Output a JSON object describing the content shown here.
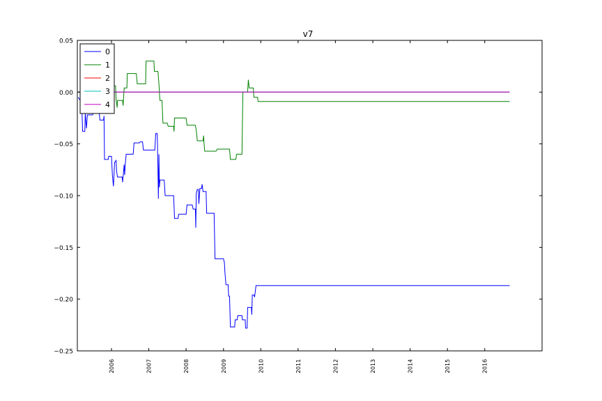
{
  "chart_data": {
    "type": "line",
    "title": "v7",
    "xlabel": "",
    "ylabel": "",
    "xlim": [
      "2005-02-01",
      "2017-07-15"
    ],
    "ylim": [
      -0.25,
      0.05
    ],
    "yticks": [
      0.05,
      0.0,
      -0.05,
      -0.1,
      -0.15,
      -0.2,
      -0.25
    ],
    "ytick_labels": [
      "0.05",
      "0.00",
      "−0.05",
      "−0.10",
      "−0.15",
      "−0.20",
      "−0.25"
    ],
    "xticks": [
      "2006-01-01",
      "2007-01-01",
      "2008-01-01",
      "2009-01-01",
      "2010-01-01",
      "2011-01-01",
      "2012-01-01",
      "2013-01-01",
      "2014-01-01",
      "2015-01-01",
      "2016-01-01"
    ],
    "xtick_labels": [
      "2006",
      "2007",
      "2008",
      "2009",
      "2010",
      "2011",
      "2012",
      "2013",
      "2014",
      "2015",
      "2016"
    ],
    "grid": false,
    "legend_position": "top-left",
    "series": [
      {
        "name": "0",
        "color": "#0000ff",
        "points": [
          [
            "2005-02-10",
            -0.005
          ],
          [
            "2005-03-15",
            -0.01
          ],
          [
            "2005-03-25",
            -0.038
          ],
          [
            "2005-04-15",
            -0.038
          ],
          [
            "2005-04-20",
            -0.02
          ],
          [
            "2005-05-01",
            -0.035
          ],
          [
            "2005-05-10",
            -0.022
          ],
          [
            "2005-07-01",
            -0.022
          ],
          [
            "2005-07-10",
            -0.018
          ],
          [
            "2005-09-01",
            -0.018
          ],
          [
            "2005-09-10",
            -0.027
          ],
          [
            "2005-10-15",
            -0.027
          ],
          [
            "2005-10-20",
            -0.023
          ],
          [
            "2005-10-25",
            -0.065
          ],
          [
            "2005-12-01",
            -0.065
          ],
          [
            "2005-12-05",
            -0.062
          ],
          [
            "2006-01-01",
            -0.062
          ],
          [
            "2006-01-10",
            -0.08
          ],
          [
            "2006-01-20",
            -0.091
          ],
          [
            "2006-02-01",
            -0.068
          ],
          [
            "2006-02-15",
            -0.066
          ],
          [
            "2006-02-20",
            -0.076
          ],
          [
            "2006-03-01",
            -0.082
          ],
          [
            "2006-04-15",
            -0.082
          ],
          [
            "2006-04-20",
            -0.087
          ],
          [
            "2006-05-05",
            -0.07
          ],
          [
            "2006-05-10",
            -0.08
          ],
          [
            "2006-05-15",
            -0.07
          ],
          [
            "2006-05-25",
            -0.06
          ],
          [
            "2006-08-01",
            -0.06
          ],
          [
            "2006-08-10",
            -0.049
          ],
          [
            "2006-10-01",
            -0.049
          ],
          [
            "2006-10-10",
            -0.048
          ],
          [
            "2006-11-01",
            -0.048
          ],
          [
            "2006-11-10",
            -0.056
          ],
          [
            "2007-03-01",
            -0.056
          ],
          [
            "2007-03-10",
            -0.04
          ],
          [
            "2007-03-25",
            -0.04
          ],
          [
            "2007-04-01",
            -0.075
          ],
          [
            "2007-04-05",
            -0.103
          ],
          [
            "2007-04-10",
            -0.06
          ],
          [
            "2007-04-15",
            -0.092
          ],
          [
            "2007-04-20",
            -0.085
          ],
          [
            "2007-06-01",
            -0.085
          ],
          [
            "2007-06-10",
            -0.1
          ],
          [
            "2007-09-01",
            -0.1
          ],
          [
            "2007-09-10",
            -0.122
          ],
          [
            "2007-10-15",
            -0.122
          ],
          [
            "2007-10-20",
            -0.118
          ],
          [
            "2008-01-01",
            -0.118
          ],
          [
            "2008-01-10",
            -0.109
          ],
          [
            "2008-03-01",
            -0.109
          ],
          [
            "2008-03-10",
            -0.113
          ],
          [
            "2008-04-01",
            -0.113
          ],
          [
            "2008-04-05",
            -0.131
          ],
          [
            "2008-04-10",
            -0.098
          ],
          [
            "2008-04-20",
            -0.094
          ],
          [
            "2008-05-01",
            -0.094
          ],
          [
            "2008-05-05",
            -0.108
          ],
          [
            "2008-05-15",
            -0.093
          ],
          [
            "2008-06-01",
            -0.093
          ],
          [
            "2008-06-05",
            -0.089
          ],
          [
            "2008-06-15",
            -0.096
          ],
          [
            "2008-07-15",
            -0.096
          ],
          [
            "2008-07-20",
            -0.117
          ],
          [
            "2008-10-01",
            -0.117
          ],
          [
            "2008-10-10",
            -0.161
          ],
          [
            "2009-01-01",
            -0.161
          ],
          [
            "2009-01-10",
            -0.165
          ],
          [
            "2009-01-15",
            -0.174
          ],
          [
            "2009-01-25",
            -0.186
          ],
          [
            "2009-02-15",
            -0.186
          ],
          [
            "2009-02-20",
            -0.197
          ],
          [
            "2009-03-01",
            -0.197
          ],
          [
            "2009-03-10",
            -0.227
          ],
          [
            "2009-04-20",
            -0.227
          ],
          [
            "2009-04-25",
            -0.22
          ],
          [
            "2009-05-15",
            -0.22
          ],
          [
            "2009-05-20",
            -0.216
          ],
          [
            "2009-07-01",
            -0.216
          ],
          [
            "2009-07-05",
            -0.22
          ],
          [
            "2009-08-01",
            -0.22
          ],
          [
            "2009-08-05",
            -0.228
          ],
          [
            "2009-08-20",
            -0.228
          ],
          [
            "2009-08-25",
            -0.208
          ],
          [
            "2009-10-01",
            -0.208
          ],
          [
            "2009-10-05",
            -0.215
          ],
          [
            "2009-10-10",
            -0.196
          ],
          [
            "2009-10-25",
            -0.196
          ],
          [
            "2009-11-01",
            -0.198
          ],
          [
            "2009-11-15",
            -0.187
          ],
          [
            "2016-09-01",
            -0.187
          ]
        ]
      },
      {
        "name": "1",
        "color": "#008000",
        "points": [
          [
            "2005-02-10",
            0.0
          ],
          [
            "2005-11-01",
            0.0
          ],
          [
            "2005-11-10",
            0.009
          ],
          [
            "2006-01-20",
            0.009
          ],
          [
            "2006-01-25",
            0.006
          ],
          [
            "2006-02-10",
            0.006
          ],
          [
            "2006-02-15",
            -0.007
          ],
          [
            "2006-02-25",
            -0.015
          ],
          [
            "2006-03-01",
            -0.008
          ],
          [
            "2006-04-20",
            -0.008
          ],
          [
            "2006-04-25",
            -0.013
          ],
          [
            "2006-05-05",
            0.004
          ],
          [
            "2006-06-01",
            0.004
          ],
          [
            "2006-06-05",
            0.018
          ],
          [
            "2006-09-01",
            0.018
          ],
          [
            "2006-09-10",
            0.008
          ],
          [
            "2006-12-01",
            0.008
          ],
          [
            "2006-12-05",
            0.03
          ],
          [
            "2007-02-20",
            0.03
          ],
          [
            "2007-02-25",
            0.02
          ],
          [
            "2007-04-01",
            0.02
          ],
          [
            "2007-04-10",
            0.008
          ],
          [
            "2007-04-20",
            -0.008
          ],
          [
            "2007-05-10",
            -0.008
          ],
          [
            "2007-05-20",
            -0.03
          ],
          [
            "2007-07-01",
            -0.03
          ],
          [
            "2007-07-10",
            -0.033
          ],
          [
            "2007-09-01",
            -0.033
          ],
          [
            "2007-09-05",
            -0.038
          ],
          [
            "2007-09-10",
            -0.025
          ],
          [
            "2008-01-01",
            -0.025
          ],
          [
            "2008-01-10",
            -0.032
          ],
          [
            "2008-04-01",
            -0.032
          ],
          [
            "2008-04-10",
            -0.037
          ],
          [
            "2008-04-20",
            -0.047
          ],
          [
            "2008-06-15",
            -0.047
          ],
          [
            "2008-06-20",
            -0.042
          ],
          [
            "2008-06-25",
            -0.05
          ],
          [
            "2008-07-01",
            -0.057
          ],
          [
            "2008-10-20",
            -0.057
          ],
          [
            "2008-11-01",
            -0.055
          ],
          [
            "2009-03-01",
            -0.055
          ],
          [
            "2009-03-10",
            -0.065
          ],
          [
            "2009-05-01",
            -0.065
          ],
          [
            "2009-05-10",
            -0.06
          ],
          [
            "2009-07-01",
            -0.06
          ],
          [
            "2009-07-10",
            0.0
          ],
          [
            "2009-08-25",
            0.0
          ],
          [
            "2009-09-01",
            0.012
          ],
          [
            "2009-09-10",
            0.004
          ],
          [
            "2009-10-20",
            0.004
          ],
          [
            "2009-10-25",
            -0.005
          ],
          [
            "2009-12-01",
            -0.005
          ],
          [
            "2009-12-05",
            -0.009
          ],
          [
            "2016-09-01",
            -0.009
          ]
        ]
      },
      {
        "name": "2",
        "color": "#ff0000",
        "points": [
          [
            "2005-02-10",
            0.0
          ],
          [
            "2016-09-01",
            0.0
          ]
        ]
      },
      {
        "name": "3",
        "color": "#00bfbf",
        "points": [
          [
            "2005-02-10",
            0.0
          ],
          [
            "2016-09-01",
            0.0
          ]
        ]
      },
      {
        "name": "4",
        "color": "#bf00bf",
        "points": [
          [
            "2005-02-10",
            0.0
          ],
          [
            "2016-09-01",
            0.0
          ]
        ]
      }
    ]
  }
}
